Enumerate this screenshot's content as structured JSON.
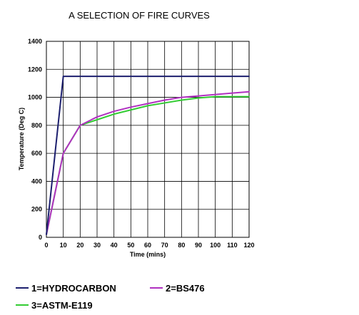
{
  "chart_data": {
    "type": "line",
    "title": "A SELECTION OF FIRE CURVES",
    "xlabel": "Time (mins)",
    "ylabel": "Temperature (Deg C)",
    "xlim": [
      0,
      120
    ],
    "ylim": [
      0,
      1400
    ],
    "xticks": [
      "0",
      "10",
      "20",
      "30",
      "40",
      "50",
      "60",
      "70",
      "80",
      "90",
      "100",
      "110",
      "120"
    ],
    "yticks": [
      "0",
      "200",
      "400",
      "600",
      "800",
      "1000",
      "1200",
      "1400"
    ],
    "grid": true,
    "legend_position": "bottom",
    "series": [
      {
        "name": "1=HYDROCARBON",
        "color": "#1c1f6e",
        "x": [
          0,
          10,
          120
        ],
        "y": [
          20,
          1150,
          1150
        ]
      },
      {
        "name": "2=BS476",
        "color": "#b030c0",
        "x": [
          0,
          10,
          20,
          30,
          40,
          50,
          60,
          70,
          80,
          90,
          100,
          110,
          120
        ],
        "y": [
          20,
          600,
          800,
          860,
          900,
          930,
          955,
          980,
          1000,
          1010,
          1020,
          1030,
          1040
        ]
      },
      {
        "name": "3=ASTM-E119",
        "color": "#33cc33",
        "x": [
          0,
          10,
          20,
          30,
          40,
          50,
          60,
          70,
          80,
          90,
          100,
          110,
          120
        ],
        "y": [
          20,
          600,
          800,
          840,
          880,
          910,
          940,
          960,
          980,
          995,
          1005,
          1005,
          1005
        ]
      }
    ]
  }
}
